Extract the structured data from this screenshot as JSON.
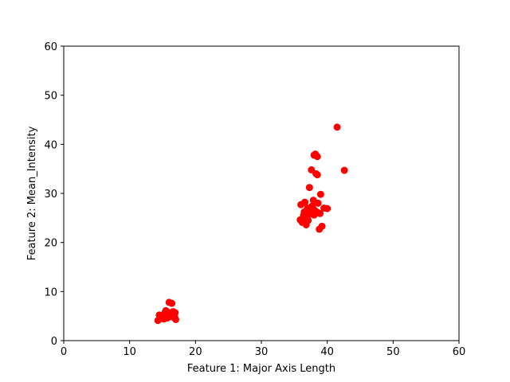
{
  "chart_data": {
    "type": "scatter",
    "title": "",
    "xlabel": "Feature 1: Major Axis Length",
    "ylabel": "Feature 2: Mean_Intensity",
    "xlim": [
      0,
      60
    ],
    "ylim": [
      0,
      60
    ],
    "xticks": [
      "0",
      "10",
      "20",
      "30",
      "40",
      "50",
      "60"
    ],
    "yticks": [
      "0",
      "10",
      "20",
      "30",
      "40",
      "50",
      "60"
    ],
    "grid": false,
    "legend": "none",
    "marker_color": "#ff0000",
    "series": [
      {
        "x": [
          14.3,
          14.5,
          14.9,
          15.1,
          15.3,
          15.4,
          15.6,
          15.7,
          15.9,
          16.0,
          16.1,
          16.3,
          16.4,
          16.5,
          16.6,
          16.8,
          17.0,
          15.2,
          15.8,
          16.2,
          16.6,
          14.8,
          15.5,
          16.9
        ],
        "y": [
          4.1,
          5.2,
          4.5,
          4.9,
          5.4,
          5.8,
          6.0,
          4.6,
          5.1,
          7.8,
          5.6,
          4.9,
          7.6,
          5.3,
          5.9,
          5.0,
          4.3,
          4.4,
          5.7,
          5.5,
          4.8,
          4.7,
          6.1,
          5.7
        ]
      },
      {
        "x": [
          35.9,
          36.0,
          36.2,
          36.4,
          36.5,
          36.6,
          36.7,
          36.8,
          36.9,
          37.0,
          37.1,
          37.2,
          37.3,
          37.5,
          37.6,
          37.8,
          37.9,
          38.0,
          38.1,
          38.2,
          38.3,
          38.4,
          38.5,
          38.6,
          38.7,
          38.8,
          39.0,
          39.2,
          39.5,
          40.0,
          38.0,
          38.5,
          37.5,
          38.9,
          41.5,
          42.6,
          36.3,
          37.7
        ],
        "y": [
          24.6,
          27.7,
          24.1,
          25.5,
          26.2,
          28.2,
          24.7,
          23.6,
          25.0,
          27.0,
          24.5,
          26.0,
          31.2,
          25.8,
          34.8,
          27.0,
          28.6,
          25.6,
          26.5,
          38.0,
          34.0,
          26.2,
          33.8,
          28.0,
          26.0,
          22.7,
          29.8,
          23.3,
          27.0,
          26.9,
          37.8,
          37.5,
          26.5,
          25.9,
          43.5,
          34.7,
          24.8,
          27.4
        ]
      }
    ]
  }
}
